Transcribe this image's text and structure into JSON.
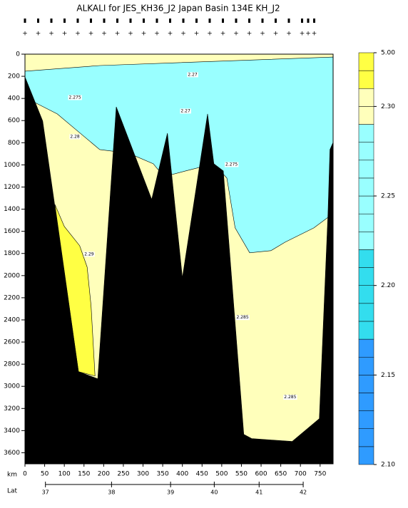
{
  "chart_data": {
    "type": "section",
    "title": "ALKALI for JES_KH36_J2 Japan Basin 134E KH_J2",
    "xlabel": "km",
    "lat_label": "Lat",
    "xlim": [
      0,
      783
    ],
    "ylim": [
      0,
      3700
    ],
    "xticks": [
      0,
      50,
      100,
      150,
      200,
      250,
      300,
      350,
      400,
      450,
      500,
      550,
      600,
      650,
      700,
      750
    ],
    "yticks": [
      0,
      200,
      400,
      600,
      800,
      1000,
      1200,
      1400,
      1600,
      1800,
      2000,
      2200,
      2400,
      2600,
      2800,
      3000,
      3200,
      3400,
      3600
    ],
    "lat_ticks": [
      {
        "value": 52,
        "label": "37"
      },
      {
        "value": 220,
        "label": "38"
      },
      {
        "value": 370,
        "label": "39"
      },
      {
        "value": 481,
        "label": "40"
      },
      {
        "value": 595,
        "label": "41"
      },
      {
        "value": 707,
        "label": "42"
      }
    ],
    "background_color": "#ffffbb",
    "regions": [
      {
        "color": "#99ffff",
        "km": [
          0,
          190,
          783,
          783,
          734,
          661,
          625,
          571,
          534,
          513,
          480,
          408,
          353,
          326,
          263,
          190,
          136,
          82,
          18,
          0
        ],
        "depth": [
          154,
          103,
          26,
          1440,
          1569,
          1698,
          1775,
          1794,
          1569,
          1119,
          990,
          1055,
          1106,
          990,
          894,
          862,
          701,
          540,
          424,
          411
        ]
      },
      {
        "color": "#ffff44",
        "km": [
          76,
          100,
          139,
          158,
          168,
          178,
          136
        ],
        "depth": [
          1357,
          1556,
          1730,
          1923,
          2276,
          2906,
          2868
        ]
      },
      {
        "color": "#000000",
        "km": [
          0,
          45,
          136,
          185,
          232,
          322,
          362,
          400,
          464,
          480,
          504,
          556,
          576,
          679,
          748,
          770,
          775,
          783,
          783,
          0
        ],
        "depth": [
          206,
          604,
          2868,
          2932,
          476,
          1312,
          714,
          2019,
          540,
          990,
          1055,
          3434,
          3472,
          3498,
          3292,
          1440,
          862,
          797,
          3700,
          3700
        ]
      }
    ],
    "contour_labels": [
      {
        "text": "2.275",
        "km": 127,
        "depth": 392
      },
      {
        "text": "2.27",
        "km": 426,
        "depth": 186
      },
      {
        "text": "2.27",
        "km": 408,
        "depth": 514
      },
      {
        "text": "2.28",
        "km": 127,
        "depth": 746
      },
      {
        "text": "2.275",
        "km": 525,
        "depth": 997
      },
      {
        "text": "2.29",
        "km": 163,
        "depth": 1807
      },
      {
        "text": "2.285",
        "km": 553,
        "depth": 2379
      },
      {
        "text": "2.285",
        "km": 674,
        "depth": 3099
      }
    ],
    "colorbar": {
      "levels": [
        2.1,
        2.11,
        2.12,
        2.13,
        2.14,
        2.15,
        2.16,
        2.17,
        2.18,
        2.19,
        2.2,
        2.21,
        2.22,
        2.23,
        2.24,
        2.25,
        2.26,
        2.27,
        2.28,
        2.29,
        2.3,
        2.31,
        2.32,
        5.0
      ],
      "colors": [
        "#2f9bff",
        "#2f9bff",
        "#2f9bff",
        "#2f9bff",
        "#2f9bff",
        "#2f9bff",
        "#2f9bff",
        "#33ddee",
        "#33ddee",
        "#33ddee",
        "#33ddee",
        "#33ddee",
        "#99ffff",
        "#99ffff",
        "#99ffff",
        "#99ffff",
        "#99ffff",
        "#99ffff",
        "#99ffff",
        "#ffffbb",
        "#ffffbb",
        "#ffff44",
        "#ffff44"
      ],
      "ticks": [
        {
          "value": 2.1,
          "label": "2.10"
        },
        {
          "value": 2.15,
          "label": "2.15"
        },
        {
          "value": 2.2,
          "label": "2.20"
        },
        {
          "value": 2.25,
          "label": "2.25"
        },
        {
          "value": 2.3,
          "label": "2.30"
        },
        {
          "value": 5,
          "label": "5.00"
        }
      ]
    }
  }
}
